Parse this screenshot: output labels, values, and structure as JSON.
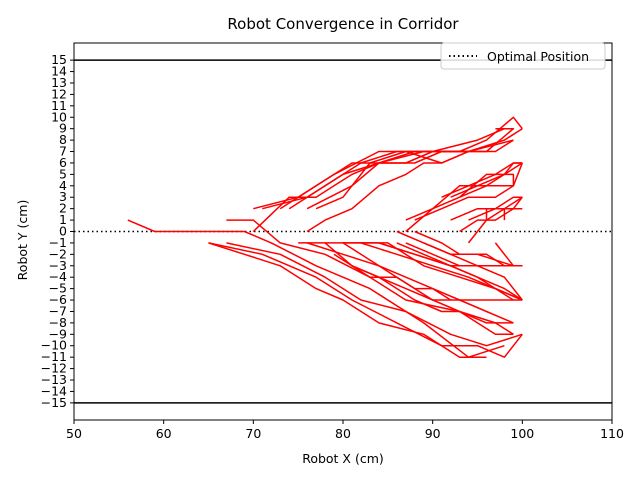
{
  "chart_data": {
    "type": "line",
    "title": "Robot Convergence in Corridor",
    "xlabel": "Robot X (cm)",
    "ylabel": "Robot Y (cm)",
    "xlim": [
      50,
      110
    ],
    "ylim": [
      -16.5,
      16.5
    ],
    "x_ticks": [
      50,
      60,
      70,
      80,
      90,
      100,
      110
    ],
    "y_ticks": [
      -15,
      -14,
      -13,
      -12,
      -11,
      -10,
      -9,
      -8,
      -7,
      -6,
      -5,
      -4,
      -3,
      -2,
      -1,
      0,
      1,
      2,
      3,
      4,
      5,
      6,
      7,
      8,
      9,
      10,
      11,
      12,
      13,
      14,
      15
    ],
    "grid": false,
    "legend_position": "top-right",
    "legend": [
      {
        "label": "Optimal Position",
        "style": "dotted",
        "color": "#000000"
      }
    ],
    "reference_lines": [
      {
        "y": 15,
        "style": "solid",
        "color": "#000000"
      },
      {
        "y": -15,
        "style": "solid",
        "color": "#000000"
      },
      {
        "y": 0,
        "style": "dotted",
        "color": "#000000"
      }
    ],
    "series_color": "#ff0000",
    "series": [
      {
        "points": [
          [
            56,
            1
          ],
          [
            59,
            0
          ],
          [
            69,
            0
          ],
          [
            72,
            -1
          ],
          [
            77,
            -3
          ],
          [
            83,
            -5
          ],
          [
            89,
            -8
          ],
          [
            94,
            -11
          ],
          [
            98,
            -10
          ]
        ]
      },
      {
        "points": [
          [
            67,
            1
          ],
          [
            70,
            1
          ],
          [
            73,
            -1
          ],
          [
            78,
            -2
          ],
          [
            83,
            -4
          ],
          [
            87,
            -6
          ],
          [
            93,
            -7
          ],
          [
            97,
            -8
          ],
          [
            99,
            -9
          ]
        ]
      },
      {
        "points": [
          [
            65,
            -1
          ],
          [
            69,
            -2
          ],
          [
            73,
            -3
          ],
          [
            77,
            -5
          ],
          [
            80,
            -6
          ],
          [
            84,
            -8
          ],
          [
            89,
            -9
          ],
          [
            93,
            -11
          ],
          [
            96,
            -11
          ]
        ]
      },
      {
        "points": [
          [
            65,
            -1
          ],
          [
            71,
            -2
          ],
          [
            77,
            -4
          ],
          [
            81,
            -6
          ],
          [
            86,
            -8
          ],
          [
            91,
            -10
          ],
          [
            95,
            -10
          ],
          [
            98,
            -11
          ],
          [
            100,
            -9
          ]
        ]
      },
      {
        "points": [
          [
            67,
            -1
          ],
          [
            73,
            -2
          ],
          [
            78,
            -4
          ],
          [
            82,
            -6
          ],
          [
            87,
            -7
          ],
          [
            92,
            -9
          ],
          [
            96,
            -10
          ],
          [
            100,
            -9
          ]
        ]
      },
      {
        "points": [
          [
            70,
            2
          ],
          [
            75,
            3
          ],
          [
            79,
            5
          ],
          [
            84,
            7
          ],
          [
            89,
            7
          ],
          [
            93,
            7
          ],
          [
            96,
            8
          ],
          [
            99,
            10
          ],
          [
            100,
            9
          ]
        ]
      },
      {
        "points": [
          [
            71,
            2
          ],
          [
            76,
            3
          ],
          [
            80,
            5
          ],
          [
            84,
            6
          ],
          [
            89,
            7
          ],
          [
            94,
            7
          ],
          [
            98,
            8
          ],
          [
            100,
            9
          ]
        ]
      },
      {
        "points": [
          [
            73,
            2
          ],
          [
            77,
            4
          ],
          [
            81,
            6
          ],
          [
            85,
            6
          ],
          [
            88,
            6
          ],
          [
            91,
            7
          ],
          [
            96,
            7
          ],
          [
            99,
            9
          ],
          [
            97,
            9
          ]
        ]
      },
      {
        "points": [
          [
            74,
            2
          ],
          [
            78,
            4
          ],
          [
            82,
            6
          ],
          [
            86,
            7
          ],
          [
            90,
            7
          ],
          [
            95,
            8
          ],
          [
            98,
            9
          ]
        ]
      },
      {
        "points": [
          [
            76,
            2
          ],
          [
            81,
            4
          ],
          [
            84,
            6
          ],
          [
            88,
            7
          ],
          [
            93,
            7
          ],
          [
            97,
            7
          ],
          [
            99,
            8
          ]
        ]
      },
      {
        "points": [
          [
            77,
            2
          ],
          [
            80,
            3
          ],
          [
            83,
            6
          ],
          [
            87,
            7
          ],
          [
            91,
            6
          ],
          [
            94,
            7
          ],
          [
            99,
            8
          ]
        ]
      },
      {
        "points": [
          [
            76,
            0
          ],
          [
            78,
            1
          ],
          [
            81,
            2
          ],
          [
            84,
            4
          ],
          [
            87,
            5
          ],
          [
            89,
            6
          ],
          [
            91,
            6
          ]
        ]
      },
      {
        "points": [
          [
            70,
            0
          ],
          [
            74,
            3
          ],
          [
            77,
            3
          ],
          [
            79,
            4
          ],
          [
            81,
            5
          ],
          [
            84,
            6
          ],
          [
            87,
            6
          ],
          [
            90,
            7
          ]
        ]
      },
      {
        "points": [
          [
            75,
            -1
          ],
          [
            78,
            -1
          ],
          [
            81,
            -3
          ],
          [
            84,
            -4
          ],
          [
            88,
            -6
          ],
          [
            91,
            -7
          ],
          [
            93,
            -7
          ],
          [
            97,
            -9
          ],
          [
            99,
            -9
          ]
        ]
      },
      {
        "points": [
          [
            76,
            -1
          ],
          [
            80,
            -2
          ],
          [
            84,
            -3
          ],
          [
            87,
            -4
          ],
          [
            90,
            -5
          ],
          [
            93,
            -6
          ],
          [
            96,
            -6
          ],
          [
            99,
            -6
          ]
        ]
      },
      {
        "points": [
          [
            78,
            -1
          ],
          [
            84,
            -1
          ],
          [
            88,
            -2
          ],
          [
            92,
            -3
          ],
          [
            95,
            -4
          ],
          [
            97,
            -5
          ],
          [
            100,
            -6
          ]
        ]
      },
      {
        "points": [
          [
            80,
            -1
          ],
          [
            85,
            -1
          ],
          [
            89,
            -3
          ],
          [
            93,
            -4
          ],
          [
            97,
            -5
          ],
          [
            99,
            -6
          ],
          [
            100,
            -6
          ]
        ]
      },
      {
        "points": [
          [
            82,
            -1
          ],
          [
            86,
            -2
          ],
          [
            90,
            -3
          ],
          [
            94,
            -4
          ],
          [
            97,
            -5
          ],
          [
            100,
            -6
          ]
        ]
      },
      {
        "points": [
          [
            84,
            -1
          ],
          [
            88,
            -2
          ],
          [
            92,
            -3
          ],
          [
            95,
            -3
          ],
          [
            98,
            -4
          ],
          [
            100,
            -6
          ]
        ]
      },
      {
        "points": [
          [
            86,
            -1
          ],
          [
            89,
            -2
          ],
          [
            92,
            -3
          ],
          [
            95,
            -4
          ],
          [
            98,
            -5
          ],
          [
            100,
            -6
          ]
        ]
      },
      {
        "points": [
          [
            86,
            0
          ],
          [
            89,
            -1
          ],
          [
            92,
            -2
          ],
          [
            95,
            -2
          ],
          [
            99,
            -3
          ],
          [
            100,
            -3
          ]
        ]
      },
      {
        "points": [
          [
            88,
            0
          ],
          [
            91,
            -1
          ],
          [
            93,
            -2
          ],
          [
            96,
            -2
          ],
          [
            98,
            -3
          ],
          [
            100,
            -3
          ]
        ]
      },
      {
        "points": [
          [
            87,
            -1
          ],
          [
            90,
            -2
          ],
          [
            93,
            -3
          ],
          [
            96,
            -3
          ],
          [
            99,
            -3
          ],
          [
            100,
            -3
          ]
        ]
      },
      {
        "points": [
          [
            89,
            -1
          ],
          [
            92,
            -2
          ],
          [
            95,
            -3
          ],
          [
            98,
            -3
          ],
          [
            100,
            -3
          ]
        ]
      },
      {
        "points": [
          [
            97,
            -1
          ],
          [
            99,
            -3
          ]
        ]
      },
      {
        "points": [
          [
            87,
            1
          ],
          [
            90,
            2
          ],
          [
            93,
            3
          ],
          [
            96,
            5
          ],
          [
            99,
            5
          ],
          [
            99,
            4
          ],
          [
            96,
            4
          ],
          [
            93,
            3
          ],
          [
            90,
            2
          ],
          [
            87,
            0
          ]
        ]
      },
      {
        "points": [
          [
            91,
            3
          ],
          [
            94,
            4
          ],
          [
            97,
            5
          ],
          [
            99,
            6
          ],
          [
            100,
            6
          ]
        ]
      },
      {
        "points": [
          [
            92,
            3
          ],
          [
            95,
            4
          ],
          [
            98,
            5
          ],
          [
            99,
            6
          ],
          [
            100,
            6
          ]
        ]
      },
      {
        "points": [
          [
            90,
            2
          ],
          [
            93,
            4
          ],
          [
            96,
            4
          ],
          [
            98,
            5
          ],
          [
            100,
            6
          ]
        ]
      },
      {
        "points": [
          [
            88,
            1
          ],
          [
            91,
            2
          ],
          [
            94,
            3
          ],
          [
            97,
            3
          ],
          [
            99,
            4
          ],
          [
            100,
            6
          ]
        ]
      },
      {
        "points": [
          [
            92,
            1
          ],
          [
            95,
            2
          ],
          [
            98,
            2
          ],
          [
            100,
            2
          ]
        ]
      },
      {
        "points": [
          [
            94,
            1
          ],
          [
            97,
            2
          ],
          [
            99,
            3
          ],
          [
            100,
            3
          ]
        ]
      },
      {
        "points": [
          [
            93,
            0
          ],
          [
            95,
            1
          ],
          [
            97,
            1
          ],
          [
            99,
            2
          ],
          [
            100,
            3
          ]
        ]
      },
      {
        "points": [
          [
            94,
            -1
          ],
          [
            96,
            1
          ],
          [
            98,
            2
          ],
          [
            100,
            3
          ]
        ]
      },
      {
        "points": [
          [
            96,
            1
          ],
          [
            96,
            2
          ],
          [
            98,
            2
          ],
          [
            98,
            1
          ]
        ]
      },
      {
        "points": [
          [
            80,
            -1
          ],
          [
            82,
            -2
          ],
          [
            84,
            -3
          ],
          [
            86,
            -4
          ],
          [
            88,
            -5
          ],
          [
            90,
            -5
          ],
          [
            92,
            -6
          ]
        ]
      },
      {
        "points": [
          [
            79,
            -2
          ],
          [
            81,
            -3
          ],
          [
            83,
            -4
          ],
          [
            86,
            -4
          ],
          [
            88,
            -5
          ],
          [
            90,
            -6
          ],
          [
            93,
            -6
          ],
          [
            96,
            -7
          ],
          [
            99,
            -8
          ]
        ]
      },
      {
        "points": [
          [
            81,
            -3
          ],
          [
            84,
            -4
          ],
          [
            87,
            -5
          ],
          [
            90,
            -6
          ],
          [
            93,
            -7
          ],
          [
            96,
            -8
          ],
          [
            99,
            -8
          ]
        ]
      }
    ]
  }
}
